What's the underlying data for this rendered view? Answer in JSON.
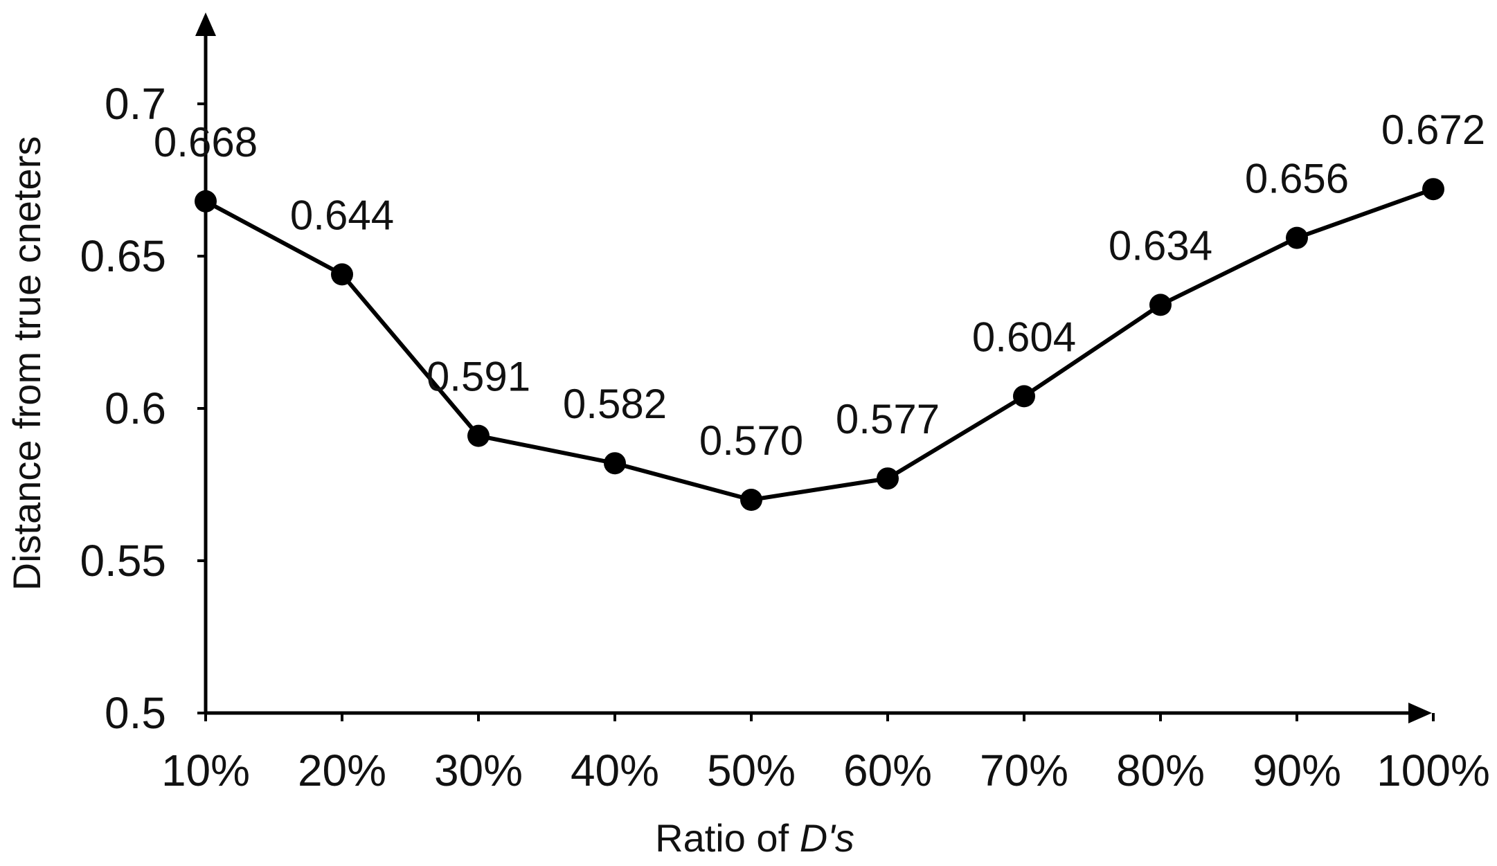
{
  "chart_data": {
    "type": "line",
    "categories": [
      "10%",
      "20%",
      "30%",
      "40%",
      "50%",
      "60%",
      "70%",
      "80%",
      "90%",
      "100%"
    ],
    "values": [
      0.668,
      0.644,
      0.591,
      0.582,
      0.57,
      0.577,
      0.604,
      0.634,
      0.656,
      0.672
    ],
    "value_labels": [
      "0.668",
      "0.644",
      "0.591",
      "0.582",
      "0.570",
      "0.577",
      "0.604",
      "0.634",
      "0.656",
      "0.672"
    ],
    "xlabel_prefix": "Ratio of ",
    "xlabel_italic": "D's",
    "ylabel": "Distance from true cneters",
    "ylim": [
      0.5,
      0.7
    ],
    "yticks": [
      "0.5",
      "0.55",
      "0.6",
      "0.65",
      "0.7"
    ],
    "grid": false,
    "line_color": "#000000",
    "marker_color": "#000000"
  }
}
